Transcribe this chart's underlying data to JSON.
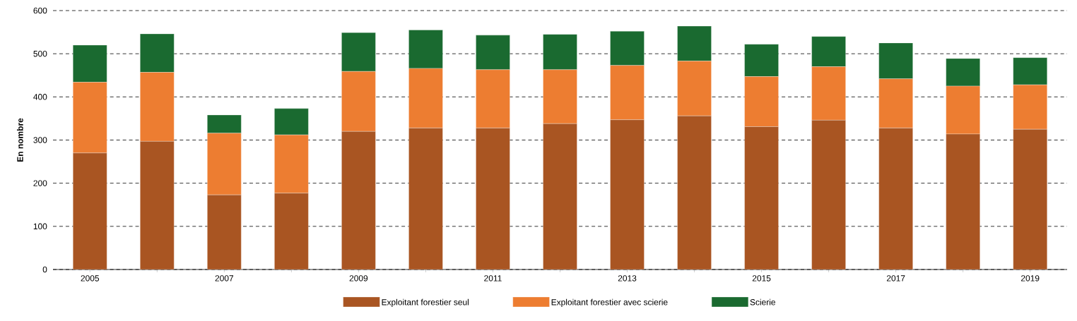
{
  "chart_data": {
    "type": "bar",
    "stacked": true,
    "ylabel": "En nombre",
    "categories": [
      "2005",
      null,
      "2007",
      null,
      "2009",
      null,
      "2011",
      null,
      "2013",
      null,
      "2015",
      null,
      "2017",
      null,
      "2019"
    ],
    "series": [
      {
        "name": "Exploitant forestier seul",
        "color": "#a95522",
        "values": [
          270,
          297,
          173,
          177,
          320,
          328,
          328,
          338,
          347,
          356,
          331,
          346,
          328,
          314,
          325
        ]
      },
      {
        "name": "Exploitant forestier avec scierie",
        "color": "#ed7d31",
        "values": [
          164,
          160,
          143,
          135,
          139,
          138,
          135,
          125,
          126,
          127,
          116,
          124,
          114,
          111,
          103
        ]
      },
      {
        "name": "Scierie",
        "color": "#1a6a30",
        "values": [
          86,
          89,
          42,
          61,
          90,
          89,
          80,
          82,
          79,
          81,
          75,
          70,
          83,
          64,
          63
        ]
      }
    ],
    "ylim": [
      0,
      600
    ],
    "yticks": [
      0,
      100,
      200,
      300,
      400,
      500,
      600
    ],
    "grid": "y",
    "legend": "bottom"
  }
}
